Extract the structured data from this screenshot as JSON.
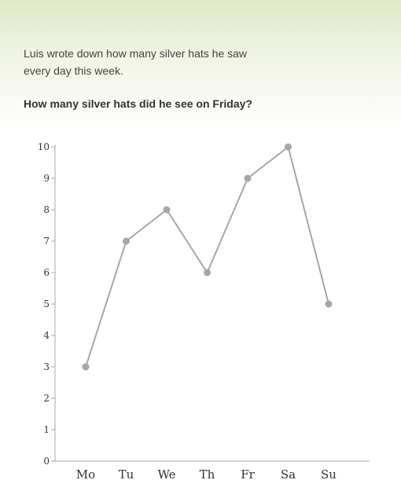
{
  "prompt": {
    "intro": "Luis wrote down how many silver hats he saw every day this week.",
    "question": "How many silver hats did he see on Friday?"
  },
  "colors": {
    "axis": "#aaaaaa",
    "line": "#a6a6a6",
    "point": "#a6a6a6"
  },
  "chart_data": {
    "type": "line",
    "categories": [
      "Mo",
      "Tu",
      "We",
      "Th",
      "Fr",
      "Sa",
      "Su"
    ],
    "values": [
      3,
      7,
      8,
      6,
      9,
      10,
      5
    ],
    "yticks": [
      0,
      1,
      2,
      3,
      4,
      5,
      6,
      7,
      8,
      9,
      10
    ],
    "ylim": [
      0,
      10
    ],
    "grid": false,
    "legend": "none"
  }
}
